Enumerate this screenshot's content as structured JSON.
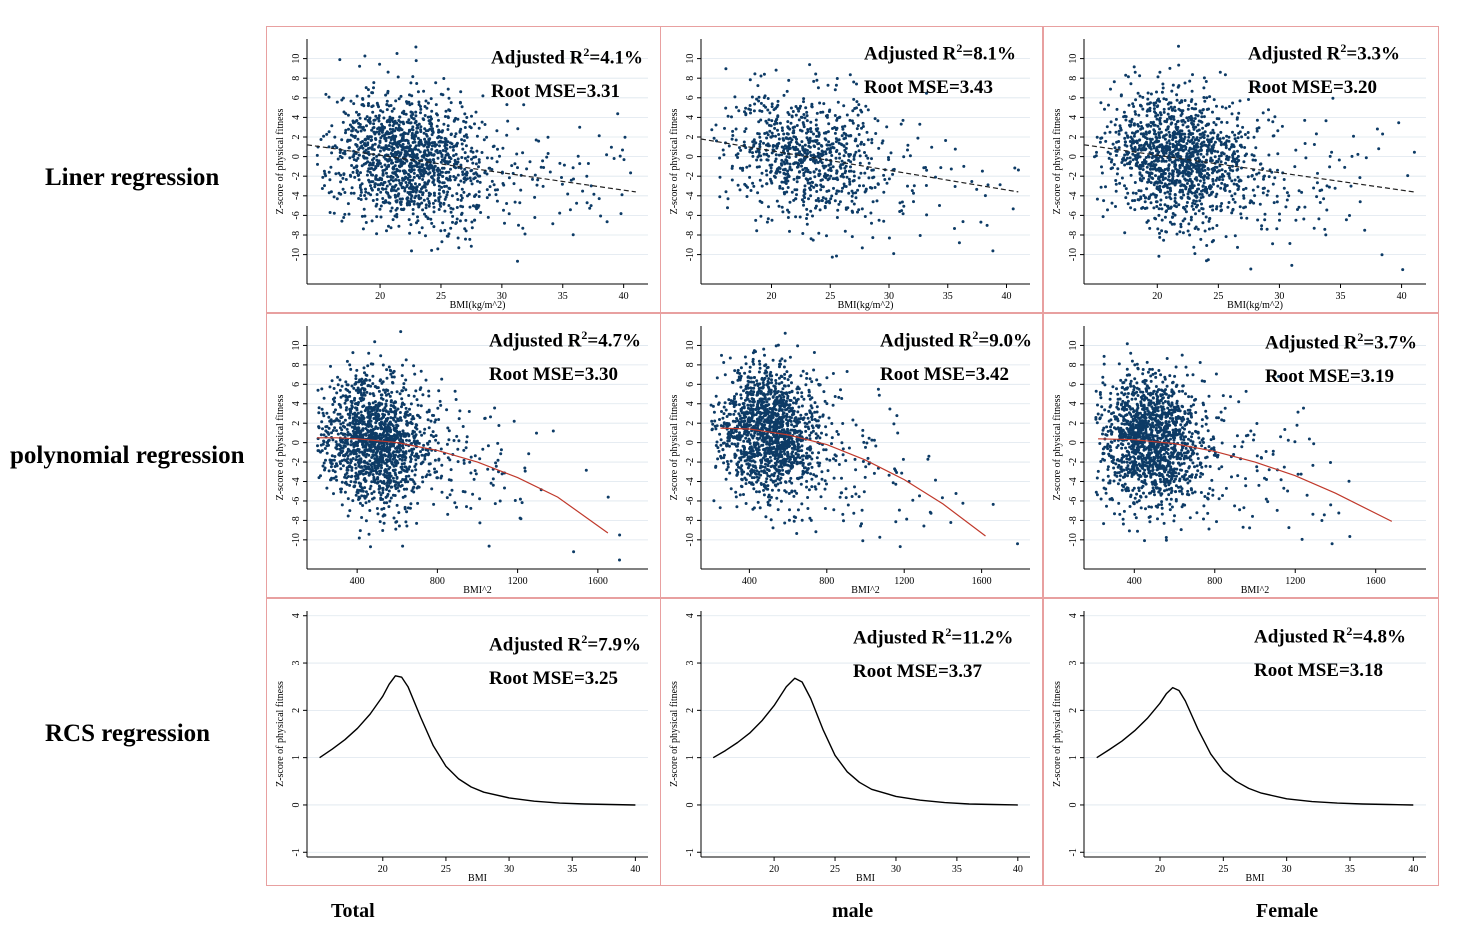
{
  "row_labels": [
    "Liner regression",
    "polynomial regression",
    "RCS regression"
  ],
  "col_labels": [
    "Total",
    "male",
    "Female"
  ],
  "chart_data": [
    {
      "type": "scatter",
      "row": 0,
      "col": 0,
      "title": "Liner regression - Total",
      "xlabel": "BMI(kg/m^2)",
      "ylabel": "Z-score of physical fitness",
      "xticks": [
        20,
        25,
        30,
        35,
        40
      ],
      "yticks": [
        10,
        8,
        6,
        4,
        2,
        0,
        -2,
        -4,
        -6,
        -8,
        -10
      ],
      "xlim": [
        14,
        42
      ],
      "ylim": [
        -13,
        12
      ],
      "fit": {
        "kind": "linear",
        "x": [
          14,
          41
        ],
        "y": [
          1.2,
          -3.6
        ]
      },
      "scatter": {
        "center": 22,
        "spread": 3.2,
        "n": 1500,
        "seed": 11
      },
      "r2_label": "Adjusted R",
      "r2_sup": "2",
      "r2_value": "=4.1%",
      "mse": "Root MSE=3.31"
    },
    {
      "type": "scatter",
      "row": 0,
      "col": 1,
      "title": "Liner regression - male",
      "xlabel": "BMI(kg/m^2)",
      "ylabel": "Z-score of physical fitness",
      "xticks": [
        20,
        25,
        30,
        35,
        40
      ],
      "yticks": [
        10,
        8,
        6,
        4,
        2,
        0,
        -2,
        -4,
        -6,
        -8,
        -10
      ],
      "xlim": [
        14,
        42
      ],
      "ylim": [
        -13,
        12
      ],
      "fit": {
        "kind": "linear",
        "x": [
          14,
          41
        ],
        "y": [
          1.8,
          -3.6
        ]
      },
      "scatter": {
        "center": 22.5,
        "spread": 3.3,
        "n": 900,
        "seed": 23
      },
      "r2_label": "Adjusted R",
      "r2_sup": "2",
      "r2_value": "=8.1%",
      "mse": "Root MSE=3.43"
    },
    {
      "type": "scatter",
      "row": 0,
      "col": 2,
      "title": "Liner regression - Female",
      "xlabel": "BMI(kg/m^2)",
      "ylabel": "Z-score of physical fitness",
      "xticks": [
        20,
        25,
        30,
        35,
        40
      ],
      "yticks": [
        10,
        8,
        6,
        4,
        2,
        0,
        -2,
        -4,
        -6,
        -8,
        -10
      ],
      "xlim": [
        14,
        42
      ],
      "ylim": [
        -13,
        12
      ],
      "fit": {
        "kind": "linear",
        "x": [
          14,
          41
        ],
        "y": [
          1.2,
          -3.6
        ]
      },
      "scatter": {
        "center": 21.5,
        "spread": 3.0,
        "n": 1500,
        "seed": 37
      },
      "r2_label": "Adjusted R",
      "r2_sup": "2",
      "r2_value": "=3.3%",
      "mse": "Root MSE=3.20"
    },
    {
      "type": "scatter",
      "row": 1,
      "col": 0,
      "title": "polynomial regression - Total",
      "xlabel": "BMI^2",
      "ylabel": "Z-score of physical fitness",
      "xticks": [
        400,
        800,
        1200,
        1600
      ],
      "yticks": [
        10,
        8,
        6,
        4,
        2,
        0,
        -2,
        -4,
        -6,
        -8,
        -10
      ],
      "xlim": [
        150,
        1850
      ],
      "ylim": [
        -13,
        12
      ],
      "fit": {
        "kind": "quadratic",
        "x": [
          200,
          300,
          400,
          600,
          800,
          1000,
          1200,
          1400,
          1650
        ],
        "y": [
          0.5,
          0.5,
          0.4,
          0.0,
          -0.8,
          -2.0,
          -3.6,
          -5.6,
          -9.3
        ]
      },
      "scatter": {
        "center": 480,
        "spread": 130,
        "n": 1600,
        "seed": 51
      },
      "r2_label": "Adjusted R",
      "r2_sup": "2",
      "r2_value": "=4.7%",
      "mse": "Root MSE=3.30"
    },
    {
      "type": "scatter",
      "row": 1,
      "col": 1,
      "title": "polynomial regression - male",
      "xlabel": "BMI^2",
      "ylabel": "Z-score of physical fitness",
      "xticks": [
        400,
        800,
        1200,
        1600
      ],
      "yticks": [
        10,
        8,
        6,
        4,
        2,
        0,
        -2,
        -4,
        -6,
        -8,
        -10
      ],
      "xlim": [
        150,
        1850
      ],
      "ylim": [
        -13,
        12
      ],
      "fit": {
        "kind": "quadratic",
        "x": [
          250,
          400,
          600,
          800,
          1000,
          1200,
          1400,
          1620
        ],
        "y": [
          1.5,
          1.4,
          0.8,
          -0.2,
          -1.8,
          -3.8,
          -6.3,
          -9.6
        ]
      },
      "scatter": {
        "center": 490,
        "spread": 130,
        "n": 1600,
        "seed": 67
      },
      "r2_label": "Adjusted R",
      "r2_sup": "2",
      "r2_value": "=9.0%",
      "mse": "Root MSE=3.42"
    },
    {
      "type": "scatter",
      "row": 1,
      "col": 2,
      "title": "polynomial regression - Female",
      "xlabel": "BMI^2",
      "ylabel": "Z-score of physical fitness",
      "xticks": [
        400,
        800,
        1200,
        1600
      ],
      "yticks": [
        10,
        8,
        6,
        4,
        2,
        0,
        -2,
        -4,
        -6,
        -8,
        -10
      ],
      "xlim": [
        150,
        1850
      ],
      "ylim": [
        -13,
        12
      ],
      "fit": {
        "kind": "quadratic",
        "x": [
          220,
          400,
          600,
          800,
          1000,
          1200,
          1400,
          1680
        ],
        "y": [
          0.4,
          0.3,
          -0.1,
          -0.9,
          -2.0,
          -3.4,
          -5.2,
          -8.1
        ]
      },
      "scatter": {
        "center": 470,
        "spread": 125,
        "n": 1600,
        "seed": 79
      },
      "r2_label": "Adjusted R",
      "r2_sup": "2",
      "r2_value": "=3.7%",
      "mse": "Root MSE=3.19"
    },
    {
      "type": "line",
      "row": 2,
      "col": 0,
      "title": "RCS regression - Total",
      "xlabel": "BMI",
      "ylabel": "Z-score of physical fitness",
      "xticks": [
        20,
        25,
        30,
        35,
        40
      ],
      "yticks": [
        4,
        3,
        2,
        1,
        0,
        -1
      ],
      "xlim": [
        14,
        41
      ],
      "ylim": [
        -1.1,
        4.1
      ],
      "curve": {
        "x": [
          15,
          16,
          17,
          18,
          19,
          20,
          20.5,
          21,
          21.5,
          22,
          23,
          24,
          25,
          26,
          27,
          28,
          30,
          32,
          34,
          36,
          38,
          40
        ],
        "y": [
          1.0,
          1.18,
          1.38,
          1.62,
          1.92,
          2.3,
          2.55,
          2.73,
          2.7,
          2.5,
          1.85,
          1.25,
          0.82,
          0.55,
          0.38,
          0.27,
          0.15,
          0.08,
          0.04,
          0.02,
          0.01,
          0.0
        ]
      },
      "r2_label": "Adjusted R",
      "r2_sup": "2",
      "r2_value": "=7.9%",
      "mse": "Root MSE=3.25"
    },
    {
      "type": "line",
      "row": 2,
      "col": 1,
      "title": "RCS regression - male",
      "xlabel": "BMI",
      "ylabel": "Z-score of physical fitness",
      "xticks": [
        20,
        25,
        30,
        35,
        40
      ],
      "yticks": [
        4,
        3,
        2,
        1,
        0,
        -1
      ],
      "xlim": [
        14,
        41
      ],
      "ylim": [
        -1.1,
        4.1
      ],
      "curve": {
        "x": [
          15,
          16,
          17,
          18,
          19,
          20,
          21,
          21.7,
          22.3,
          23,
          24,
          25,
          26,
          27,
          28,
          30,
          32,
          34,
          36,
          38,
          40
        ],
        "y": [
          1.0,
          1.15,
          1.32,
          1.52,
          1.78,
          2.1,
          2.5,
          2.68,
          2.6,
          2.25,
          1.6,
          1.05,
          0.7,
          0.48,
          0.33,
          0.18,
          0.1,
          0.05,
          0.02,
          0.01,
          0.0
        ]
      },
      "r2_label": "Adjusted R",
      "r2_sup": "2",
      "r2_value": "=11.2%",
      "mse": "Root MSE=3.37"
    },
    {
      "type": "line",
      "row": 2,
      "col": 2,
      "title": "RCS regression - Female",
      "xlabel": "BMI",
      "ylabel": "Z-score of physical fitness",
      "xticks": [
        20,
        25,
        30,
        35,
        40
      ],
      "yticks": [
        4,
        3,
        2,
        1,
        0,
        -1
      ],
      "xlim": [
        14,
        41
      ],
      "ylim": [
        -1.1,
        4.1
      ],
      "curve": {
        "x": [
          15,
          16,
          17,
          18,
          19,
          20,
          20.5,
          21,
          21.5,
          22,
          23,
          24,
          25,
          26,
          27,
          28,
          30,
          32,
          34,
          36,
          38,
          40
        ],
        "y": [
          1.0,
          1.17,
          1.35,
          1.57,
          1.83,
          2.15,
          2.35,
          2.48,
          2.42,
          2.2,
          1.6,
          1.08,
          0.72,
          0.5,
          0.35,
          0.25,
          0.13,
          0.07,
          0.04,
          0.02,
          0.01,
          0.0
        ]
      },
      "r2_label": "Adjusted R",
      "r2_sup": "2",
      "r2_value": "=4.8%",
      "mse": "Root MSE=3.18"
    }
  ],
  "colors": {
    "scatter": "#0d3b66",
    "linear_fit": "#222222",
    "poly_fit": "#c0392b",
    "rcs": "#000000",
    "border": "#e8a0a0",
    "grid": "#dde6ee"
  }
}
